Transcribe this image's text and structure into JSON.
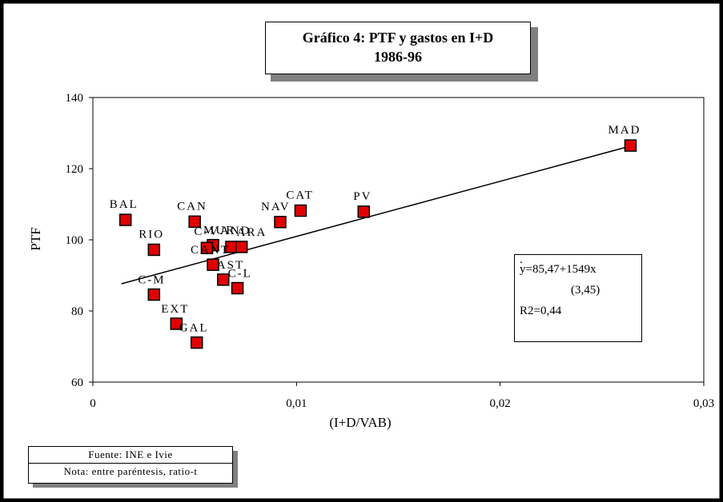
{
  "chart_data": {
    "type": "scatter",
    "title": "Gráfico 4: PTF y gastos en I+D",
    "subtitle": "1986-96",
    "xlabel": "(I+D/VAB)",
    "ylabel": "PTF",
    "xlim": [
      0,
      0.03
    ],
    "ylim": [
      60,
      140
    ],
    "xticks": [
      0,
      0.01,
      0.02,
      0.03
    ],
    "xtick_labels": [
      "0",
      "0,01",
      "0,02",
      "0,03"
    ],
    "yticks": [
      60,
      80,
      100,
      120,
      140
    ],
    "ytick_labels": [
      "60",
      "80",
      "100",
      "120",
      "140"
    ],
    "grid": false,
    "marker_color": "#e00000",
    "points": [
      {
        "label": "MAD",
        "x": 0.0264,
        "y": 126.5
      },
      {
        "label": "PV",
        "x": 0.0133,
        "y": 107.9
      },
      {
        "label": "CAT",
        "x": 0.0102,
        "y": 108.2
      },
      {
        "label": "NAV",
        "x": 0.0092,
        "y": 105.0
      },
      {
        "label": "BAL",
        "x": 0.0016,
        "y": 105.6
      },
      {
        "label": "CAN",
        "x": 0.005,
        "y": 105.1
      },
      {
        "label": "RIO",
        "x": 0.003,
        "y": 97.2
      },
      {
        "label": "MUR",
        "x": 0.0059,
        "y": 98.5
      },
      {
        "label": "C-V",
        "x": 0.0056,
        "y": 97.7
      },
      {
        "label": "AND",
        "x": 0.0068,
        "y": 98.0
      },
      {
        "label": "ARA",
        "x": 0.0073,
        "y": 98.0
      },
      {
        "label": "CANT",
        "x": 0.0059,
        "y": 93.0
      },
      {
        "label": "AST",
        "x": 0.0064,
        "y": 88.8
      },
      {
        "label": "C-L",
        "x": 0.0071,
        "y": 86.4
      },
      {
        "label": "C-M",
        "x": 0.003,
        "y": 84.6
      },
      {
        "label": "EXT",
        "x": 0.0041,
        "y": 76.4
      },
      {
        "label": "GAL",
        "x": 0.0051,
        "y": 71.1
      }
    ],
    "fit_line": {
      "intercept": 85.47,
      "slope": 1549,
      "x_range": [
        0.0014,
        0.0264
      ]
    },
    "annotations": {
      "dot": ".",
      "equation": "y=85,47+1549x",
      "t_ratio": "(3,45)",
      "r2": "R2=0,44"
    }
  },
  "source_note": {
    "line1": "Fuente: INE e Ivie",
    "line2": "Nota: entre paréntesis, ratio-t"
  }
}
